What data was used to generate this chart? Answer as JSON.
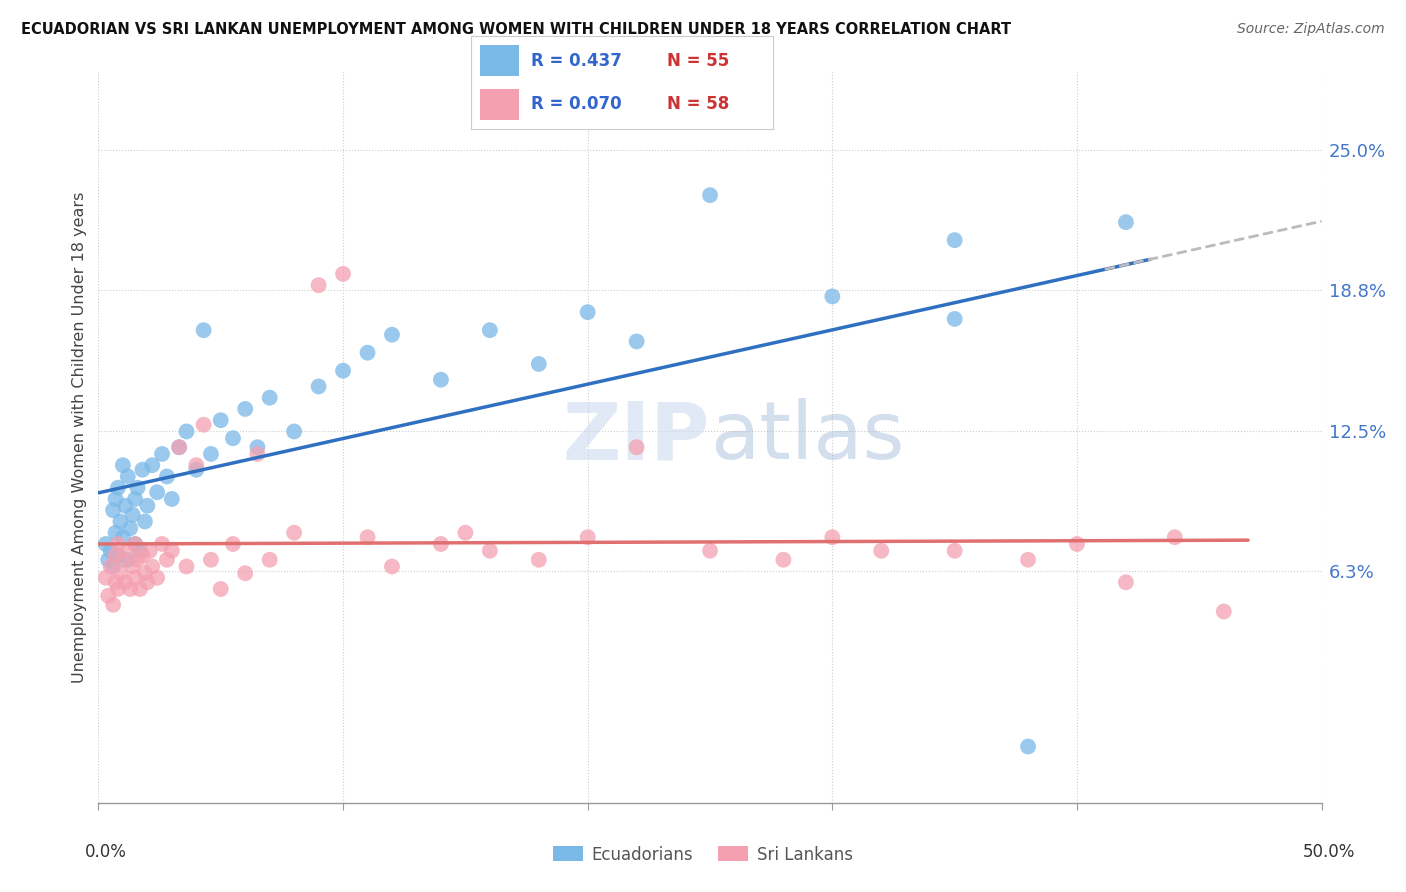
{
  "title": "ECUADORIAN VS SRI LANKAN UNEMPLOYMENT AMONG WOMEN WITH CHILDREN UNDER 18 YEARS CORRELATION CHART",
  "source": "Source: ZipAtlas.com",
  "ylabel": "Unemployment Among Women with Children Under 18 years",
  "ecuadorian_color": "#7ab8e8",
  "srilanka_color": "#f4a0b0",
  "trend_ecu_color": "#3070c0",
  "trend_sri_color": "#e07070",
  "trend_ext_color": "#bbbbbb",
  "legend_R_ecu": "R = 0.437",
  "legend_N_ecu": "N = 55",
  "legend_R_sri": "R = 0.070",
  "legend_N_sri": "N = 58",
  "watermark": "ZIPatlas",
  "xlim": [
    0.0,
    0.5
  ],
  "ylim": [
    -0.04,
    0.285
  ],
  "ytick_vals": [
    0.063,
    0.125,
    0.188,
    0.25
  ],
  "ytick_labels": [
    "6.3%",
    "12.5%",
    "18.8%",
    "25.0%"
  ],
  "xtick_vals": [
    0.0,
    0.1,
    0.2,
    0.3,
    0.4,
    0.5
  ],
  "ecu_x": [
    0.003,
    0.004,
    0.005,
    0.006,
    0.006,
    0.007,
    0.007,
    0.008,
    0.008,
    0.009,
    0.01,
    0.01,
    0.011,
    0.012,
    0.012,
    0.013,
    0.014,
    0.015,
    0.015,
    0.016,
    0.017,
    0.018,
    0.019,
    0.02,
    0.022,
    0.024,
    0.026,
    0.028,
    0.03,
    0.033,
    0.036,
    0.04,
    0.043,
    0.046,
    0.05,
    0.055,
    0.06,
    0.065,
    0.07,
    0.08,
    0.09,
    0.1,
    0.11,
    0.12,
    0.14,
    0.16,
    0.18,
    0.2,
    0.22,
    0.25,
    0.3,
    0.35,
    0.38,
    0.42,
    0.35
  ],
  "ecu_y": [
    0.075,
    0.068,
    0.072,
    0.065,
    0.09,
    0.08,
    0.095,
    0.07,
    0.1,
    0.085,
    0.078,
    0.11,
    0.092,
    0.068,
    0.105,
    0.082,
    0.088,
    0.095,
    0.075,
    0.1,
    0.072,
    0.108,
    0.085,
    0.092,
    0.11,
    0.098,
    0.115,
    0.105,
    0.095,
    0.118,
    0.125,
    0.108,
    0.17,
    0.115,
    0.13,
    0.122,
    0.135,
    0.118,
    0.14,
    0.125,
    0.145,
    0.152,
    0.16,
    0.168,
    0.148,
    0.17,
    0.155,
    0.178,
    0.165,
    0.23,
    0.185,
    0.21,
    -0.015,
    0.218,
    0.175
  ],
  "sri_x": [
    0.003,
    0.004,
    0.005,
    0.006,
    0.007,
    0.007,
    0.008,
    0.008,
    0.009,
    0.01,
    0.011,
    0.012,
    0.013,
    0.014,
    0.015,
    0.015,
    0.016,
    0.017,
    0.018,
    0.019,
    0.02,
    0.021,
    0.022,
    0.024,
    0.026,
    0.028,
    0.03,
    0.033,
    0.036,
    0.04,
    0.043,
    0.046,
    0.05,
    0.055,
    0.06,
    0.065,
    0.07,
    0.08,
    0.09,
    0.1,
    0.11,
    0.12,
    0.14,
    0.15,
    0.16,
    0.18,
    0.2,
    0.22,
    0.25,
    0.28,
    0.3,
    0.32,
    0.35,
    0.38,
    0.4,
    0.42,
    0.44,
    0.46
  ],
  "sri_y": [
    0.06,
    0.052,
    0.065,
    0.048,
    0.07,
    0.058,
    0.055,
    0.075,
    0.062,
    0.068,
    0.058,
    0.072,
    0.055,
    0.065,
    0.06,
    0.075,
    0.068,
    0.055,
    0.07,
    0.062,
    0.058,
    0.072,
    0.065,
    0.06,
    0.075,
    0.068,
    0.072,
    0.118,
    0.065,
    0.11,
    0.128,
    0.068,
    0.055,
    0.075,
    0.062,
    0.115,
    0.068,
    0.08,
    0.19,
    0.195,
    0.078,
    0.065,
    0.075,
    0.08,
    0.072,
    0.068,
    0.078,
    0.118,
    0.072,
    0.068,
    0.078,
    0.072,
    0.072,
    0.068,
    0.075,
    0.058,
    0.078,
    0.045
  ]
}
